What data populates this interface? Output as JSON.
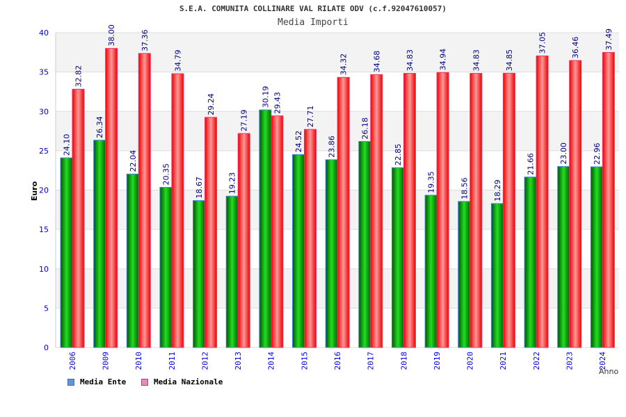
{
  "chart_data": {
    "type": "bar",
    "title": "S.E.A. COMUNITA COLLINARE VAL RILATE ODV (c.f.92047610057)",
    "subtitle": "Media Importi",
    "xlabel": "Anno",
    "ylabel": "Euro",
    "ylim": [
      0,
      40
    ],
    "yticks": [
      "0",
      "5",
      "10",
      "15",
      "20",
      "25",
      "30",
      "35",
      "40"
    ],
    "categories": [
      "2006",
      "2009",
      "2010",
      "2011",
      "2012",
      "2013",
      "2014",
      "2015",
      "2016",
      "2017",
      "2018",
      "2019",
      "2020",
      "2021",
      "2022",
      "2023",
      "2024"
    ],
    "series": [
      {
        "name": "Media Ente",
        "color": "#00aa00",
        "legend_color": "#5599ee",
        "values": [
          24.1,
          26.34,
          22.04,
          20.35,
          18.67,
          19.23,
          30.19,
          24.52,
          23.86,
          26.18,
          22.85,
          19.35,
          18.56,
          18.29,
          21.66,
          23.0,
          22.96
        ],
        "labels": [
          "24.10",
          "26.34",
          "22.04",
          "20.35",
          "18.67",
          "19.23",
          "30.19",
          "24.52",
          "23.86",
          "26.18",
          "22.85",
          "19.35",
          "18.56",
          "18.29",
          "21.66",
          "23.00",
          "22.96"
        ]
      },
      {
        "name": "Media Nazionale",
        "color": "#ee1111",
        "legend_color": "#ee88bb",
        "values": [
          32.82,
          38.0,
          37.36,
          34.79,
          29.24,
          27.19,
          29.43,
          27.71,
          34.32,
          34.68,
          34.83,
          34.94,
          34.83,
          34.85,
          37.05,
          36.46,
          37.49
        ],
        "labels": [
          "32.82",
          "38.00",
          "37.36",
          "34.79",
          "29.24",
          "27.19",
          "29.43",
          "27.71",
          "34.32",
          "34.68",
          "34.83",
          "34.94",
          "34.83",
          "34.85",
          "37.05",
          "36.46",
          "37.49"
        ]
      }
    ],
    "grid": true,
    "legend": "bottom-left"
  }
}
